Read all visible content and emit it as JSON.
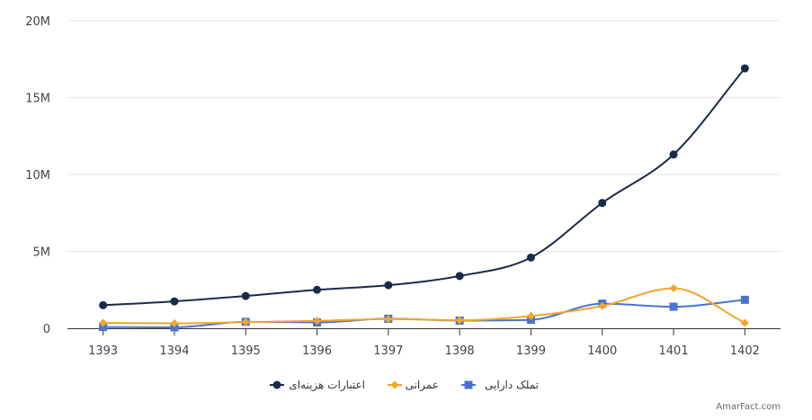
{
  "chart_data": {
    "type": "line",
    "categories": [
      "1393",
      "1394",
      "1395",
      "1396",
      "1397",
      "1398",
      "1399",
      "1400",
      "1401",
      "1402"
    ],
    "y_ticks": [
      "0",
      "5M",
      "10M",
      "15M",
      "20M"
    ],
    "y_tick_values": [
      0,
      5000000,
      10000000,
      15000000,
      20000000
    ],
    "ylim": [
      0,
      20000000
    ],
    "grid": "horizontal",
    "legend_position": "bottom-center",
    "series": [
      {
        "name": "اعتبارات هزینه‌ای",
        "color": "#1b2a4a",
        "marker": "circle",
        "values": [
          1500000,
          1750000,
          2100000,
          2500000,
          2800000,
          3400000,
          4600000,
          8150000,
          11300000,
          16900000
        ]
      },
      {
        "name": "عمرانی",
        "color": "#f2a52a",
        "marker": "diamond",
        "values": [
          350000,
          320000,
          400000,
          480000,
          600000,
          520000,
          800000,
          1450000,
          2600000,
          350000
        ]
      },
      {
        "name": "تملک دارایی",
        "color": "#4a72d0",
        "marker": "square",
        "values": [
          80000,
          60000,
          420000,
          380000,
          620000,
          500000,
          550000,
          1600000,
          1400000,
          1850000
        ]
      }
    ]
  },
  "credit": "AmarFact.com"
}
